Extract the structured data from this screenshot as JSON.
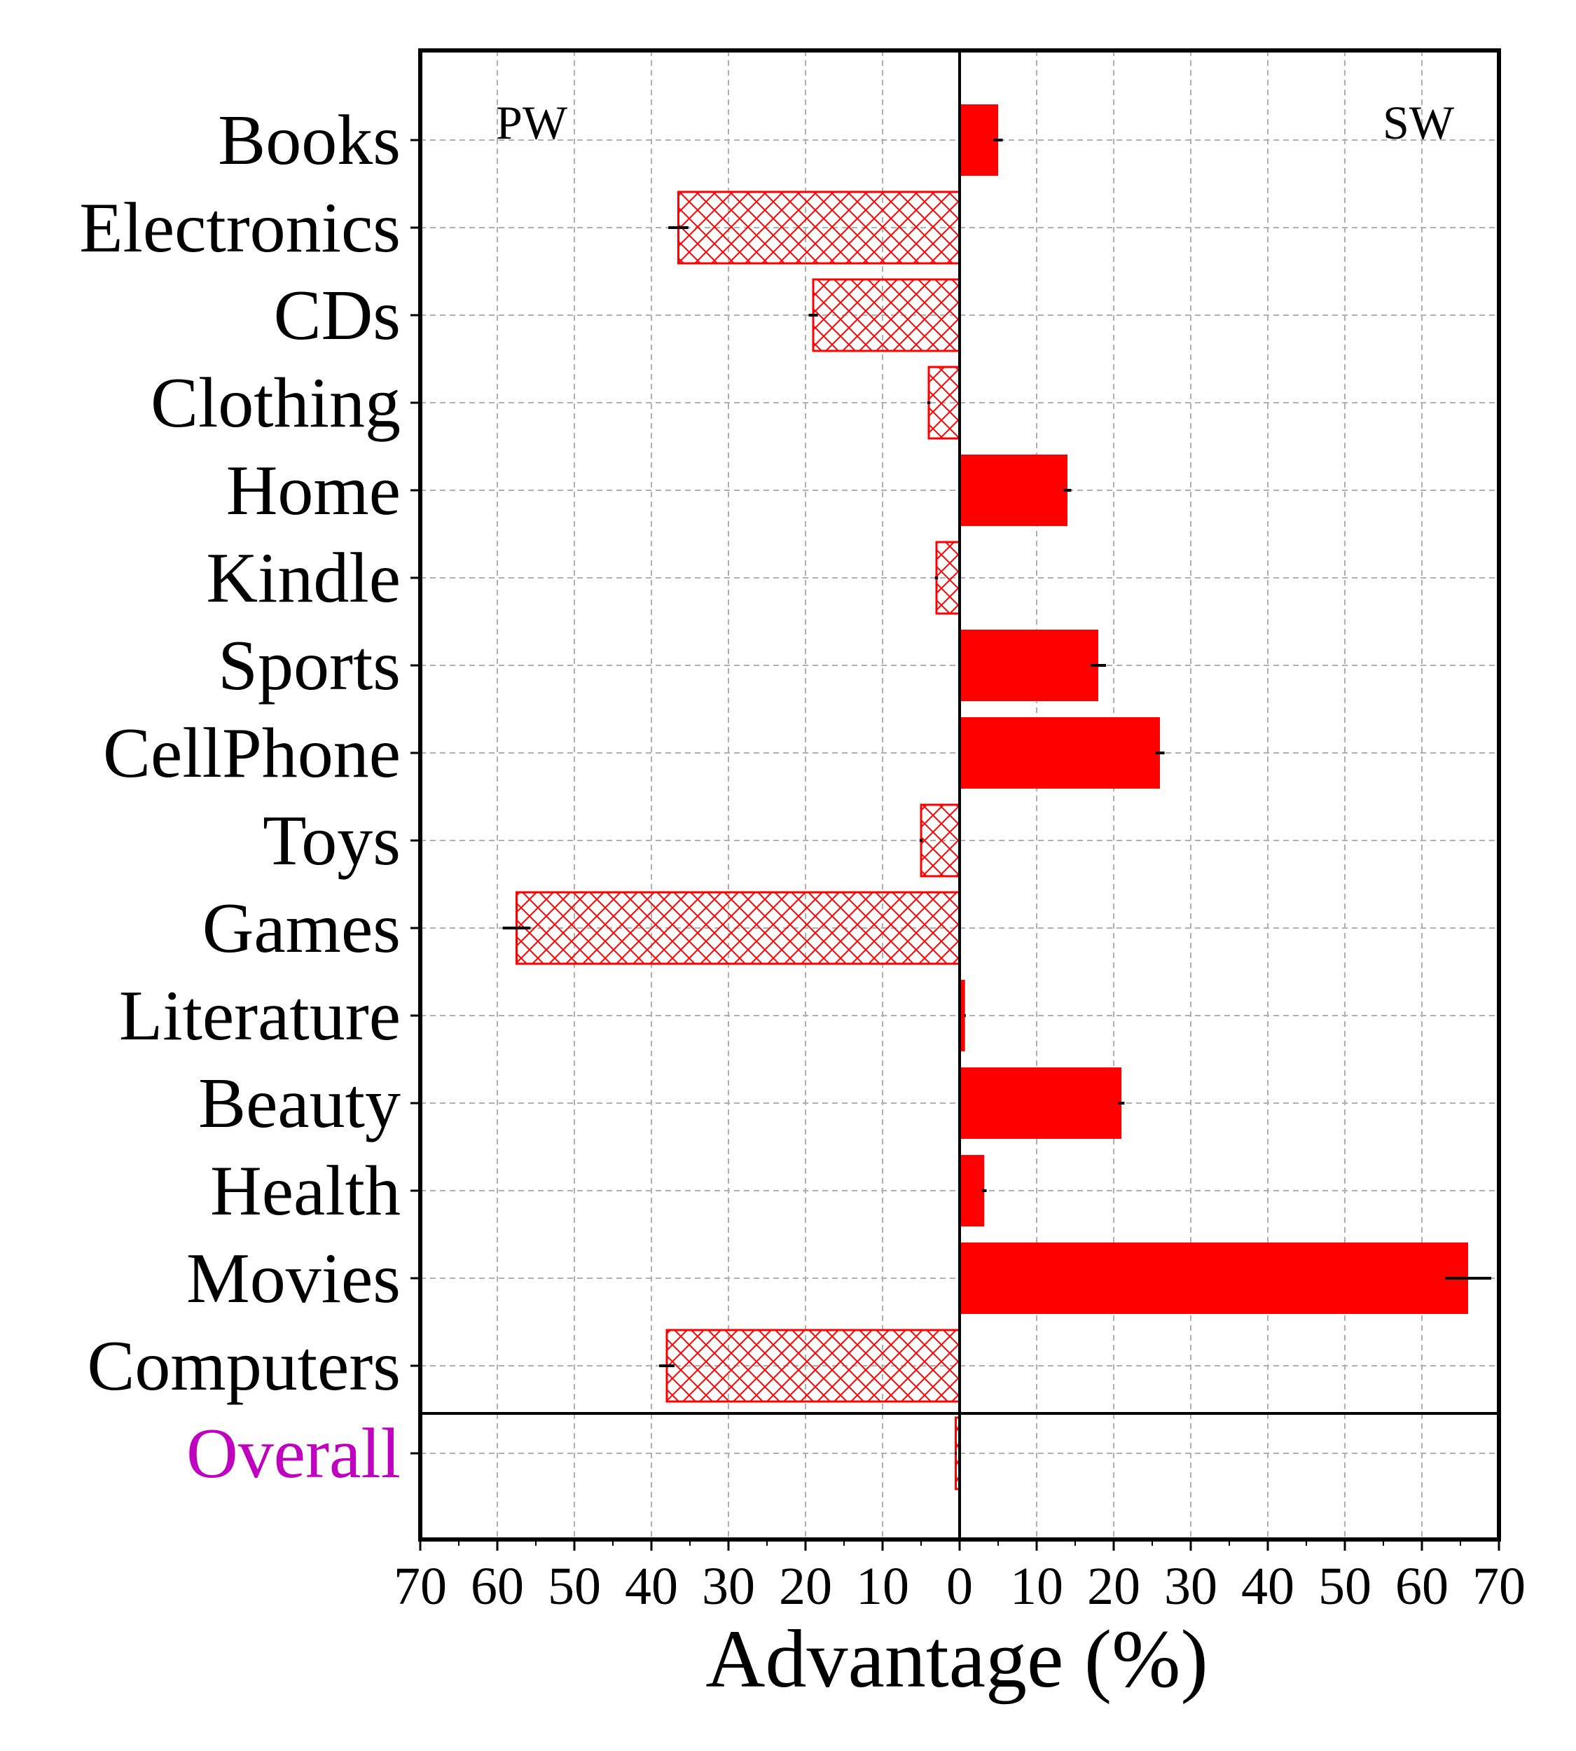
{
  "chart_data": {
    "type": "bar",
    "orientation": "horizontal",
    "categories": [
      "Books",
      "Electronics",
      "CDs",
      "Clothing",
      "Home",
      "Kindle",
      "Sports",
      "CellPhone",
      "Toys",
      "Games",
      "Literature",
      "Beauty",
      "Health",
      "Movies",
      "Computers",
      "Overall"
    ],
    "values": [
      5,
      -36.5,
      -19,
      -4,
      14,
      -3,
      18,
      26,
      -5,
      -57.5,
      0.7,
      21,
      3.2,
      66,
      -38,
      -0.5
    ],
    "errors": [
      0.6,
      1.3,
      0.6,
      0.2,
      0.5,
      0.2,
      1.0,
      0.6,
      0.2,
      1.8,
      0.1,
      0.4,
      0.3,
      3.0,
      1.0,
      0.1
    ],
    "xlabel": "Advantage (%)",
    "ylabel": "",
    "xlim": [
      -70,
      70
    ],
    "xticks": [
      -70,
      -60,
      -50,
      -40,
      -30,
      -20,
      -10,
      0,
      10,
      20,
      30,
      40,
      50,
      60,
      70
    ],
    "xtick_labels": [
      "70",
      "60",
      "50",
      "40",
      "30",
      "20",
      "10",
      "0",
      "10",
      "20",
      "30",
      "40",
      "50",
      "60",
      "70"
    ],
    "annotations": {
      "left": "PW",
      "right": "SW"
    },
    "grid": true,
    "colors": {
      "bar": "#ff0000",
      "error": "#000000",
      "overall_label": "#bf00bf"
    },
    "negative_style": "crosshatch",
    "positive_style": "solid"
  }
}
